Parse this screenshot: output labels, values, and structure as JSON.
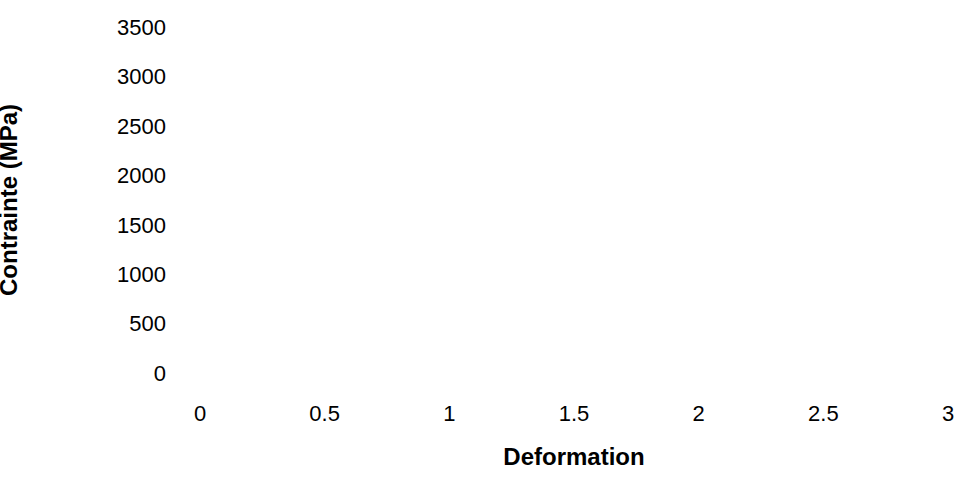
{
  "chart_data": {
    "type": "line",
    "x_label": "Deformation",
    "y_label": "Contrainte (MPa)",
    "series": [],
    "xlim": [
      0,
      3
    ],
    "xticks": [
      0,
      0.5,
      1,
      1.5,
      2,
      2.5,
      3
    ],
    "ylim": [
      0,
      3500
    ],
    "yticks": [
      0,
      500,
      1000,
      1500,
      2000,
      2500,
      3000,
      3500
    ],
    "grid": false
  }
}
